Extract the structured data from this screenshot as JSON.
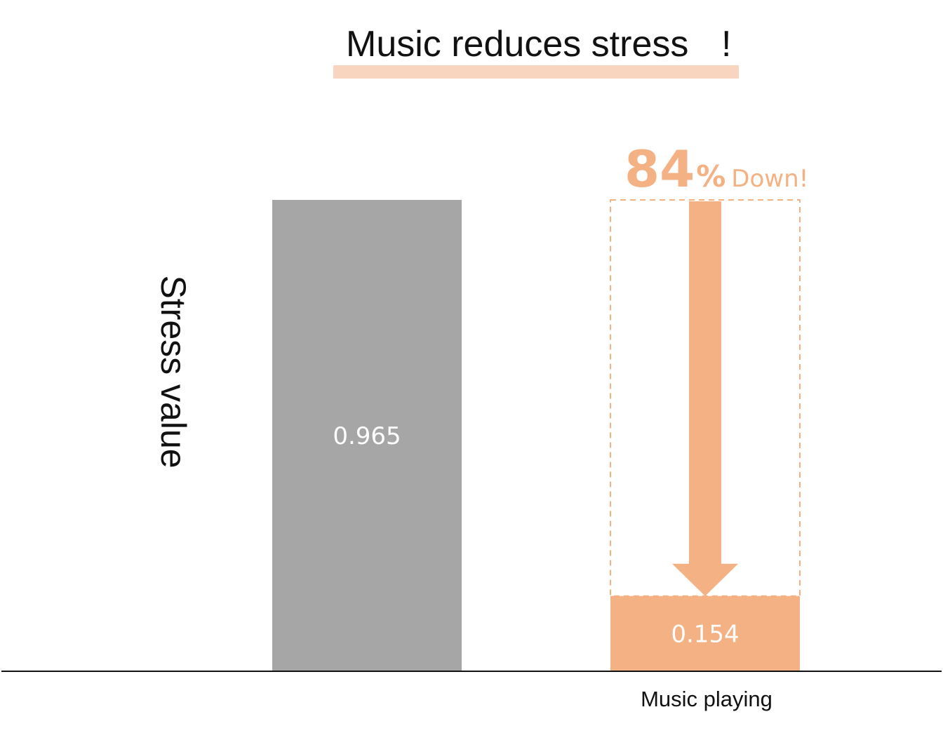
{
  "chart_data": {
    "type": "bar",
    "title": "Music reduces stress",
    "title_mark": "!",
    "ylabel": "Stress value",
    "categories": [
      "",
      "Music playing"
    ],
    "values": [
      0.965,
      0.154
    ],
    "value_labels": [
      "0.965",
      "0.154"
    ],
    "ylim": [
      0,
      0.965
    ],
    "grid": false,
    "annotation": {
      "number": "84",
      "percent_sign": "%",
      "text": "Down!"
    },
    "colors": {
      "baseline_bar": "#a6a6a6",
      "highlight_bar": "#f4b183",
      "title_underline": "#f8d5bf",
      "text": "#111111"
    }
  }
}
